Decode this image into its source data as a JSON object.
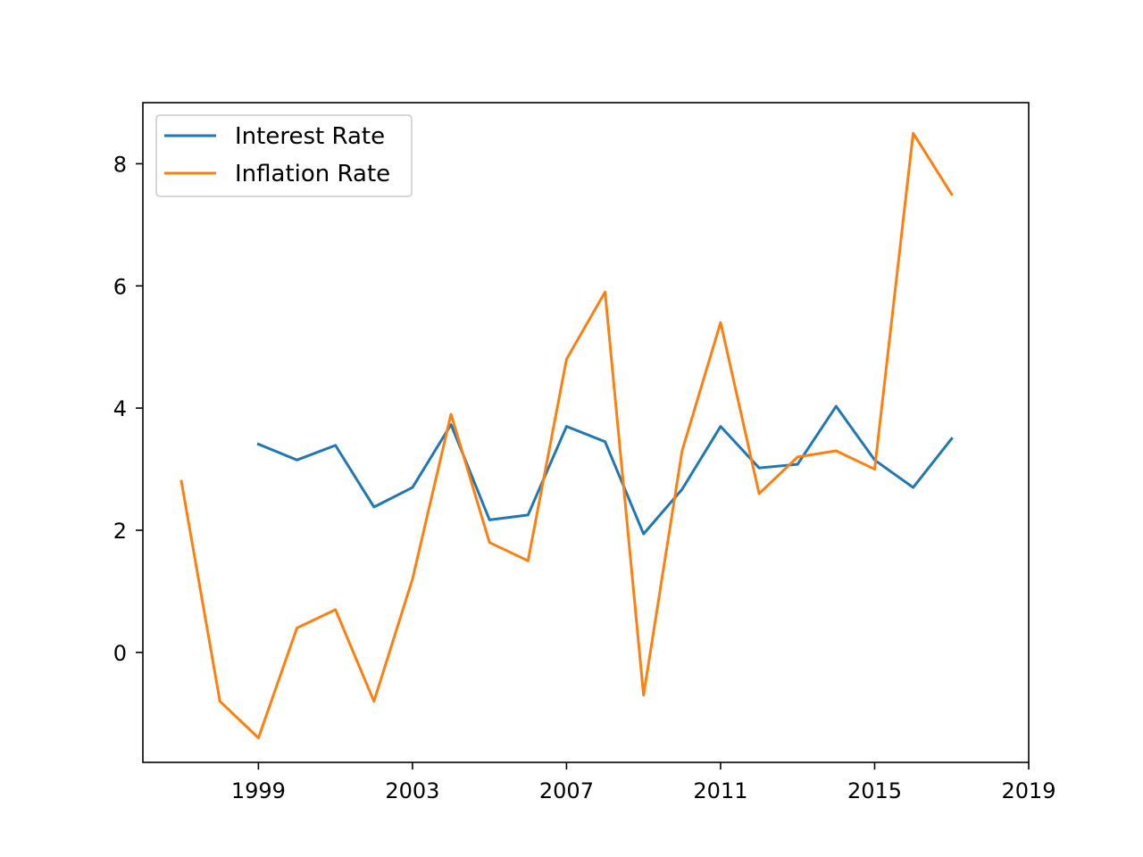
{
  "chart_data": {
    "type": "line",
    "title": "",
    "xlabel": "",
    "ylabel": "",
    "xlim": [
      1996,
      2019
    ],
    "ylim": [
      -1.8,
      9.0
    ],
    "x_ticks": [
      1999,
      2003,
      2007,
      2011,
      2015,
      2019
    ],
    "y_ticks": [
      0,
      2,
      4,
      6,
      8
    ],
    "grid": false,
    "legend_position": "top-left",
    "series": [
      {
        "name": "Interest Rate",
        "color": "#1f77b4",
        "x": [
          1999,
          2000,
          2001,
          2002,
          2003,
          2004,
          2005,
          2006,
          2007,
          2008,
          2009,
          2010,
          2011,
          2012,
          2013,
          2014,
          2015,
          2016,
          2017
        ],
        "y": [
          3.41,
          3.15,
          3.39,
          2.38,
          2.7,
          3.73,
          2.17,
          2.25,
          3.7,
          3.45,
          1.94,
          2.67,
          3.7,
          3.02,
          3.08,
          4.03,
          3.15,
          2.7,
          3.5
        ]
      },
      {
        "name": "Inflation Rate",
        "color": "#ff7f0e",
        "x": [
          1997,
          1998,
          1999,
          2000,
          2001,
          2002,
          2003,
          2004,
          2005,
          2006,
          2007,
          2008,
          2009,
          2010,
          2011,
          2012,
          2013,
          2014,
          2015,
          2016,
          2017
        ],
        "y": [
          2.8,
          -0.8,
          -1.4,
          0.4,
          0.7,
          -0.8,
          1.2,
          3.9,
          1.8,
          1.5,
          4.8,
          5.9,
          -0.7,
          3.3,
          5.4,
          2.6,
          3.2,
          3.3,
          3.0,
          8.5,
          7.5
        ]
      }
    ]
  }
}
